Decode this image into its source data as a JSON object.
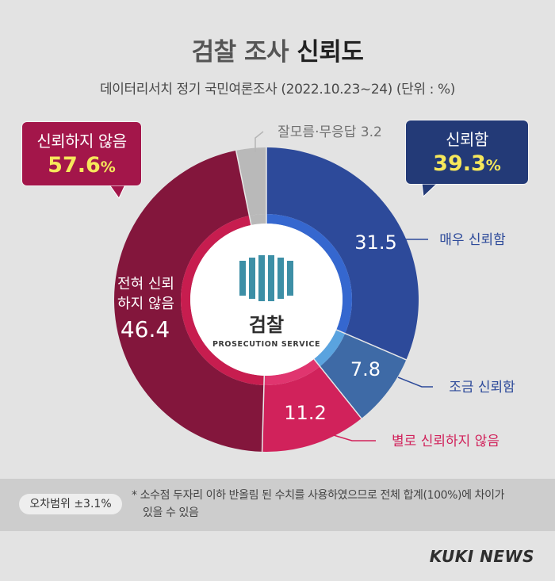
{
  "title": {
    "light": "검찰 조사",
    "bold": "신뢰도"
  },
  "subtitle": "데이터리서치 정기 국민여론조사 (2022.10.23~24) (단위 : %)",
  "callouts": {
    "not_trust": {
      "label": "신뢰하지 않음",
      "value": "57.6",
      "unit": "%"
    },
    "trust": {
      "label": "신뢰함",
      "value": "39.3",
      "unit": "%"
    },
    "unknown": "잘모름·무응답 3.2"
  },
  "center_logo": {
    "name": "검찰",
    "sub": "PROSECUTION SERVICE"
  },
  "colors": {
    "very_trust": "#2d4a9a",
    "some_trust": "#3e6aa6",
    "not_much": "#d1225b",
    "not_at_all": "#83163c",
    "unknown": "#b9b9b9",
    "inner_blue": "#3567cf",
    "inner_light_blue": "#5aa3df",
    "inner_pink": "#e0356f",
    "inner_crimson": "#c71d4f",
    "label_blue": "#2d4a9a",
    "label_pink": "#d1225b",
    "logo_teal": "#3d8fa6"
  },
  "chart_data": {
    "type": "pie",
    "title": "검찰 조사 신뢰도",
    "subtitle": "데이터리서치 정기 국민여론조사 (2022.10.23~24) (단위 : %)",
    "categories": [
      "매우 신뢰함",
      "조금 신뢰함",
      "별로 신뢰하지 않음",
      "전혀 신뢰하지 않음",
      "잘모름·무응답"
    ],
    "values": [
      31.5,
      7.8,
      11.2,
      46.4,
      3.2
    ],
    "data_labels": [
      "31.5",
      "7.8",
      "11.2",
      "46.4",
      "3.2"
    ],
    "groups": [
      {
        "name": "신뢰함",
        "value": 39.3
      },
      {
        "name": "신뢰하지 않음",
        "value": 57.6
      }
    ],
    "inner_label_not_at_all": [
      "전혀 신뢰",
      "하지 않음"
    ]
  },
  "footer": {
    "margin_of_error": "오차범위 ±3.1%",
    "note_line1": "* 소수점 두자리 이하 반올림 된 수치를 사용하였으므로 전체 합계(100%)에 차이가",
    "note_line2": "있을 수 있음",
    "brand": "KUKI NEWS"
  }
}
